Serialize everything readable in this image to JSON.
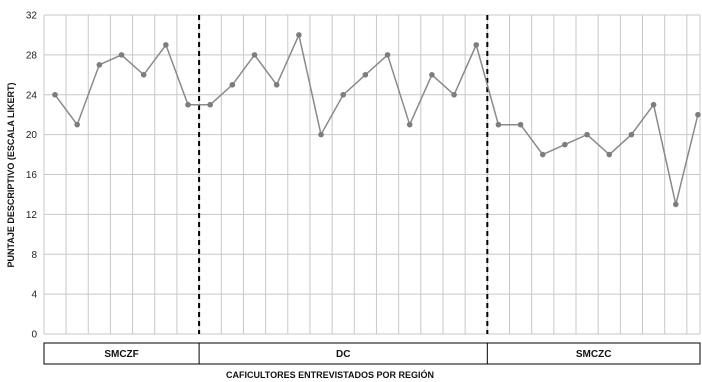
{
  "chart_data": {
    "type": "line",
    "xlabel": "CAFICULTORES ENTREVISTADOS POR REGIÓN",
    "ylabel": "PUNTAJE DESCRIPTIVO (ESCALA LIKERT)",
    "ylim": [
      0,
      32
    ],
    "yticks": [
      "0",
      "4",
      "8",
      "12",
      "16",
      "20",
      "24",
      "28",
      "32"
    ],
    "grid": true,
    "colors": {
      "line": "#8a8a8a",
      "marker": "#7d7d7d",
      "grid": "#c8c8c8",
      "divider": "#000000"
    },
    "regions": [
      {
        "label": "SMCZF",
        "start": 0,
        "end": 7
      },
      {
        "label": "DC",
        "start": 7,
        "end": 20
      },
      {
        "label": "SMCZC",
        "start": 20,
        "end": 29
      }
    ],
    "series": [
      {
        "values": [
          24,
          21,
          27,
          28,
          26,
          29,
          23,
          23,
          25,
          28,
          25,
          30,
          20,
          24,
          26,
          28,
          21,
          26,
          24,
          29,
          21,
          21,
          18,
          19,
          20,
          18,
          20,
          23,
          13,
          22
        ]
      }
    ]
  }
}
